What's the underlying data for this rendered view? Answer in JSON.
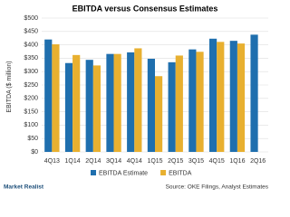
{
  "chart_data": {
    "type": "bar",
    "title": "EBITDA versus Consensus Estimates",
    "y_label": "EBITDA ($ million)",
    "categories": [
      "4Q13",
      "1Q14",
      "2Q14",
      "3Q14",
      "4Q14",
      "1Q15",
      "2Q15",
      "3Q15",
      "4Q15",
      "1Q16",
      "2Q16"
    ],
    "series": [
      {
        "name": "EBITDA Estimate",
        "color": "#1f6fae",
        "values": [
          420,
          332,
          344,
          366,
          372,
          348,
          335,
          383,
          423,
          415,
          438
        ]
      },
      {
        "name": "EBITDA",
        "color": "#e8b030",
        "values": [
          402,
          362,
          323,
          366,
          387,
          283,
          360,
          374,
          411,
          405,
          null
        ]
      }
    ],
    "ylim": [
      0,
      500
    ],
    "yticks": [
      {
        "value": 0,
        "label": "$0"
      },
      {
        "value": 50,
        "label": "$50"
      },
      {
        "value": 100,
        "label": "$100"
      },
      {
        "value": 150,
        "label": "$150"
      },
      {
        "value": 200,
        "label": "$200"
      },
      {
        "value": 250,
        "label": "$250"
      },
      {
        "value": 300,
        "label": "$300"
      },
      {
        "value": 350,
        "label": "$350"
      },
      {
        "value": 400,
        "label": "$400"
      },
      {
        "value": 450,
        "label": "$450"
      },
      {
        "value": 500,
        "label": "$500"
      }
    ],
    "grid": true,
    "legend": "bottom",
    "source": "Source: OKE Filings, Analyst Estimates",
    "branding": "Market Realist"
  }
}
